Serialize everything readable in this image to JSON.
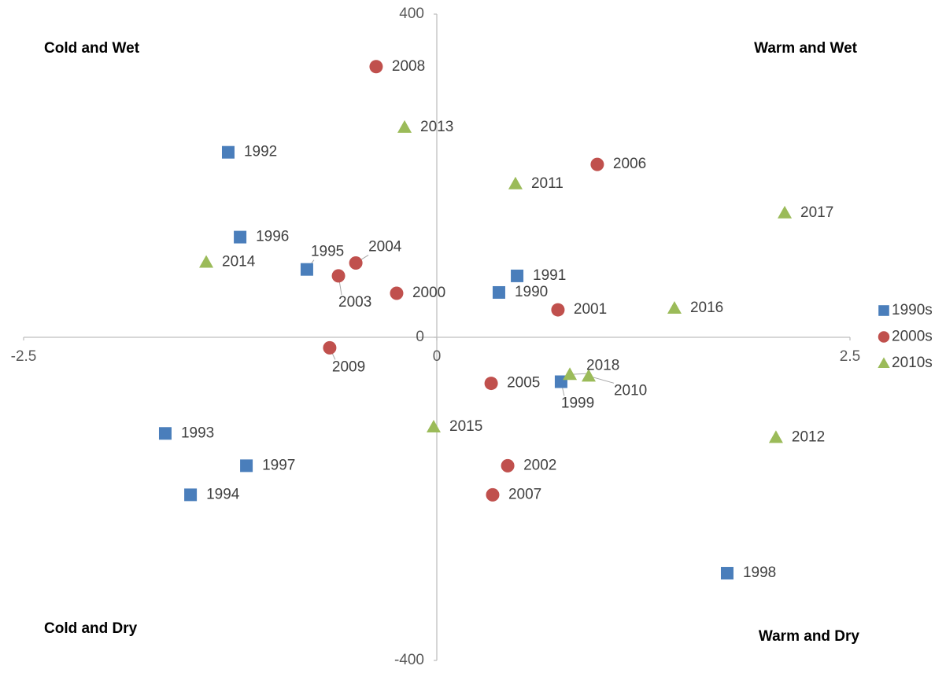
{
  "chart_data": {
    "type": "scatter",
    "annotations": [
      "Cold and Wet",
      "Warm and Wet",
      "Cold and Dry",
      "Warm and Dry"
    ],
    "xlim": [
      -2.5,
      2.5
    ],
    "xticks": [
      -2.5,
      0,
      2.5
    ],
    "ylim": [
      -400,
      400
    ],
    "yticks": [
      -400,
      0,
      400
    ],
    "legend": "right",
    "series": [
      {
        "name": "1990s",
        "color": "#4a7ebb",
        "marker": "square",
        "labels": [
          "1990",
          "1991",
          "1992",
          "1993",
          "1994",
          "1995",
          "1996",
          "1997",
          "1998",
          "1999"
        ],
        "x": [
          0.376,
          0.486,
          -1.262,
          -1.643,
          -1.49,
          -0.786,
          -1.19,
          -1.152,
          1.757,
          0.752
        ],
        "values": [
          55.5,
          76,
          229,
          -119,
          -195,
          84,
          124,
          -159,
          -292,
          -55
        ]
      },
      {
        "name": "2000s",
        "color": "#c0504d",
        "marker": "circle",
        "labels": [
          "2000",
          "2001",
          "2002",
          "2003",
          "2004",
          "2005",
          "2006",
          "2007",
          "2008",
          "2009"
        ],
        "x": [
          -0.243,
          0.733,
          0.429,
          -0.595,
          -0.49,
          0.329,
          0.971,
          0.338,
          -0.367,
          -0.648
        ],
        "values": [
          54.5,
          34,
          -159,
          76,
          92,
          -57,
          214,
          -195,
          335,
          -13
        ]
      },
      {
        "name": "2010s",
        "color": "#9bbb59",
        "marker": "triangle",
        "labels": [
          "2010",
          "2011",
          "2012",
          "2013",
          "2014",
          "2015",
          "2016",
          "2017",
          "2018"
        ],
        "x": [
          0.919,
          0.476,
          2.052,
          -0.195,
          -1.395,
          -0.019,
          1.438,
          2.105,
          0.805
        ],
        "values": [
          -48,
          190,
          -124,
          260,
          93,
          -111,
          36,
          154,
          -46
        ]
      }
    ]
  }
}
